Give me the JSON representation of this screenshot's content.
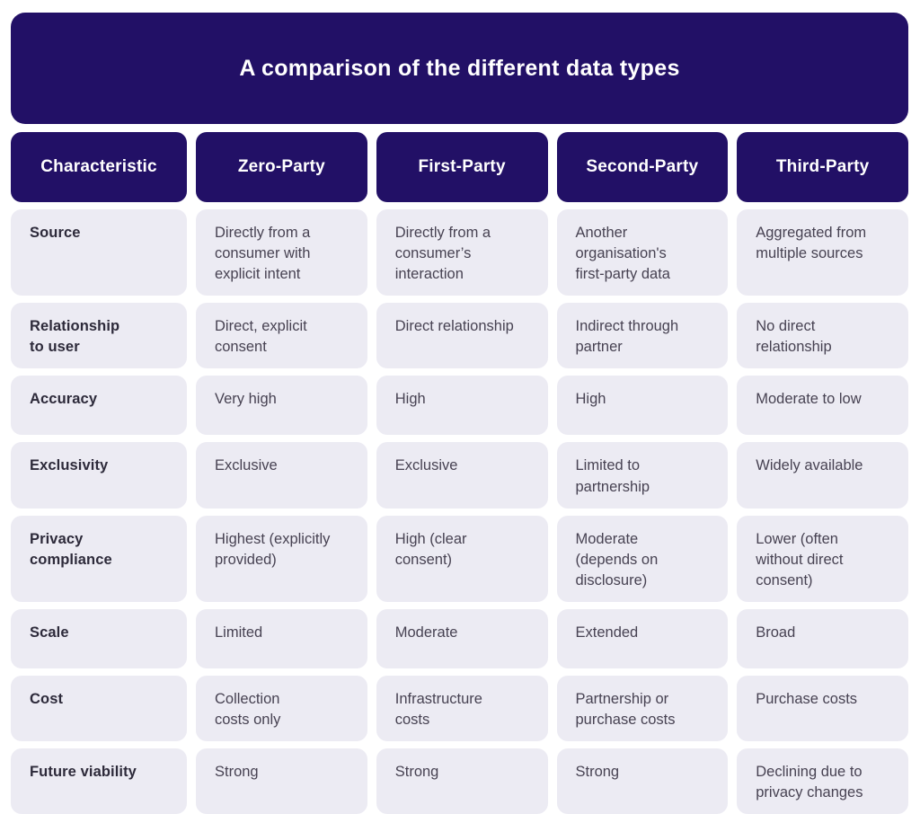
{
  "title": "A comparison of the different data types",
  "colors": {
    "primary": "#221066",
    "cell_background": "#ecebf3",
    "header_text": "#ffffff",
    "label_text": "#2d2a3a",
    "value_text": "#474252",
    "page_background": "#ffffff"
  },
  "table": {
    "headers": [
      "Characteristic",
      "Zero-Party",
      "First-Party",
      "Second-Party",
      "Third-Party"
    ],
    "rows": [
      {
        "characteristic": "Source",
        "cells": [
          "Directly from a\nconsumer with\nexplicit intent",
          "Directly from a\nconsumer’s\ninteraction",
          "Another\norganisation's\nfirst-party data",
          "Aggregated from\nmultiple sources"
        ]
      },
      {
        "characteristic": "Relationship\nto user",
        "cells": [
          "Direct, explicit\nconsent",
          "Direct relationship",
          "Indirect through\npartner",
          "No direct\nrelationship"
        ]
      },
      {
        "characteristic": "Accuracy",
        "cells": [
          "Very high",
          "High",
          "High",
          "Moderate to low"
        ]
      },
      {
        "characteristic": "Exclusivity",
        "cells": [
          "Exclusive",
          "Exclusive",
          "Limited to\npartnership",
          "Widely available"
        ]
      },
      {
        "characteristic": "Privacy\ncompliance",
        "cells": [
          "Highest (explicitly\nprovided)",
          "High (clear\nconsent)",
          "Moderate\n(depends on\ndisclosure)",
          "Lower (often\nwithout direct\nconsent)"
        ]
      },
      {
        "characteristic": "Scale",
        "cells": [
          "Limited",
          "Moderate",
          "Extended",
          "Broad"
        ]
      },
      {
        "characteristic": "Cost",
        "cells": [
          "Collection\ncosts only",
          "Infrastructure\ncosts",
          "Partnership or\npurchase costs",
          "Purchase costs"
        ]
      },
      {
        "characteristic": "Future viability",
        "cells": [
          "Strong",
          "Strong",
          "Strong",
          "Declining due to\nprivacy changes"
        ]
      }
    ]
  }
}
